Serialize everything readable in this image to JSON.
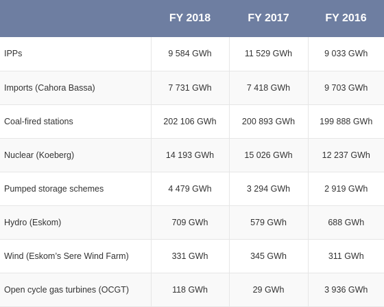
{
  "table": {
    "headers": [
      "",
      "FY 2018",
      "FY 2017",
      "FY 2016"
    ],
    "rows": [
      [
        "IPPs",
        "9 584 GWh",
        "11 529 GWh",
        "9 033 GWh"
      ],
      [
        "Imports (Cahora Bassa)",
        "7 731 GWh",
        "7 418 GWh",
        "9 703 GWh"
      ],
      [
        "Coal-fired stations",
        "202 106 GWh",
        "200 893 GWh",
        "199 888 GWh"
      ],
      [
        "Nuclear (Koeberg)",
        "14 193 GWh",
        "15 026 GWh",
        "12 237 GWh"
      ],
      [
        "Pumped storage schemes",
        "4 479 GWh",
        "3 294 GWh",
        "2 919 GWh"
      ],
      [
        "Hydro (Eskom)",
        "709 GWh",
        "579 GWh",
        "688 GWh"
      ],
      [
        "Wind (Eskom’s Sere Wind Farm)",
        "331 GWh",
        "345 GWh",
        "311 GWh"
      ],
      [
        "Open cycle gas turbines (OCGT)",
        "118 GWh",
        "29 GWh",
        "3 936 GWh"
      ]
    ]
  },
  "colors": {
    "header_bg": "#6e7ea1",
    "header_text": "#ffffff",
    "row_alt_bg": "#f9f9f9"
  }
}
